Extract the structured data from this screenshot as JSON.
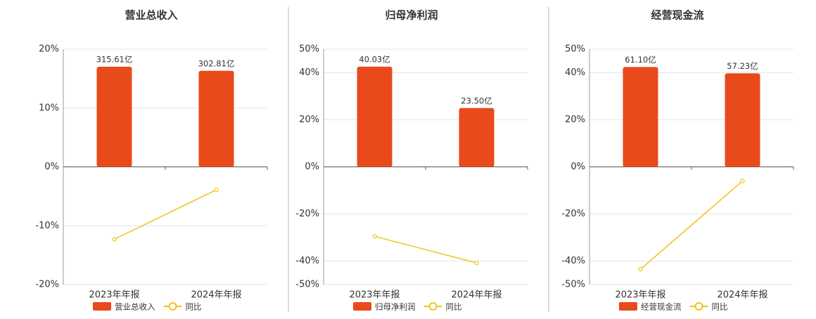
{
  "chart_data": [
    {
      "type": "combo",
      "title": "营业总收入",
      "categories": [
        "2023年年报",
        "2024年年报"
      ],
      "ylim": [
        -20,
        20
      ],
      "yticks": [
        {
          "value": -20,
          "label": "-20%"
        },
        {
          "value": -10,
          "label": "-10%"
        },
        {
          "value": 0,
          "label": "0%"
        },
        {
          "value": 10,
          "label": "10%"
        },
        {
          "value": 20,
          "label": "20%"
        }
      ],
      "y2lim": [
        -371,
        371
      ],
      "grid": true,
      "series": [
        {
          "name": "营业总收入",
          "type": "bar",
          "axis": "y2",
          "color": "#e84a1c",
          "values": [
            315.61,
            302.81
          ],
          "value_labels": [
            "315.61亿",
            "302.81亿"
          ]
        },
        {
          "name": "同比",
          "type": "line",
          "color": "#f0c419",
          "values": [
            -12.3,
            -3.9
          ]
        }
      ]
    },
    {
      "type": "combo",
      "title": "归母净利润",
      "categories": [
        "2023年年报",
        "2024年年报"
      ],
      "ylim": [
        -50,
        50
      ],
      "yticks": [
        {
          "value": -50,
          "label": "-50%"
        },
        {
          "value": -40,
          "label": "-40%"
        },
        {
          "value": -20,
          "label": "-20%"
        },
        {
          "value": 0,
          "label": "0%"
        },
        {
          "value": 20,
          "label": "20%"
        },
        {
          "value": 40,
          "label": "40%"
        },
        {
          "value": 50,
          "label": "50%"
        }
      ],
      "y2lim": [
        -47,
        47
      ],
      "grid": true,
      "series": [
        {
          "name": "归母净利润",
          "type": "bar",
          "axis": "y2",
          "color": "#e84a1c",
          "values": [
            40.03,
            23.5
          ],
          "value_labels": [
            "40.03亿",
            "23.50亿"
          ]
        },
        {
          "name": "同比",
          "type": "line",
          "color": "#f0c419",
          "values": [
            -29.5,
            -40.8
          ]
        }
      ]
    },
    {
      "type": "combo",
      "title": "经营现金流",
      "categories": [
        "2023年年报",
        "2024年年报"
      ],
      "ylim": [
        -50,
        50
      ],
      "yticks": [
        {
          "value": -50,
          "label": "-50%"
        },
        {
          "value": -40,
          "label": "-40%"
        },
        {
          "value": -20,
          "label": "-20%"
        },
        {
          "value": 0,
          "label": "0%"
        },
        {
          "value": 20,
          "label": "20%"
        },
        {
          "value": 40,
          "label": "40%"
        },
        {
          "value": 50,
          "label": "50%"
        }
      ],
      "y2lim": [
        -72,
        72
      ],
      "grid": true,
      "series": [
        {
          "name": "经营现金流",
          "type": "bar",
          "axis": "y2",
          "color": "#e84a1c",
          "values": [
            61.1,
            57.23
          ],
          "value_labels": [
            "61.10亿",
            "57.23亿"
          ]
        },
        {
          "name": "同比",
          "type": "line",
          "color": "#f0c419",
          "values": [
            -43.5,
            -6.0
          ]
        }
      ]
    }
  ]
}
